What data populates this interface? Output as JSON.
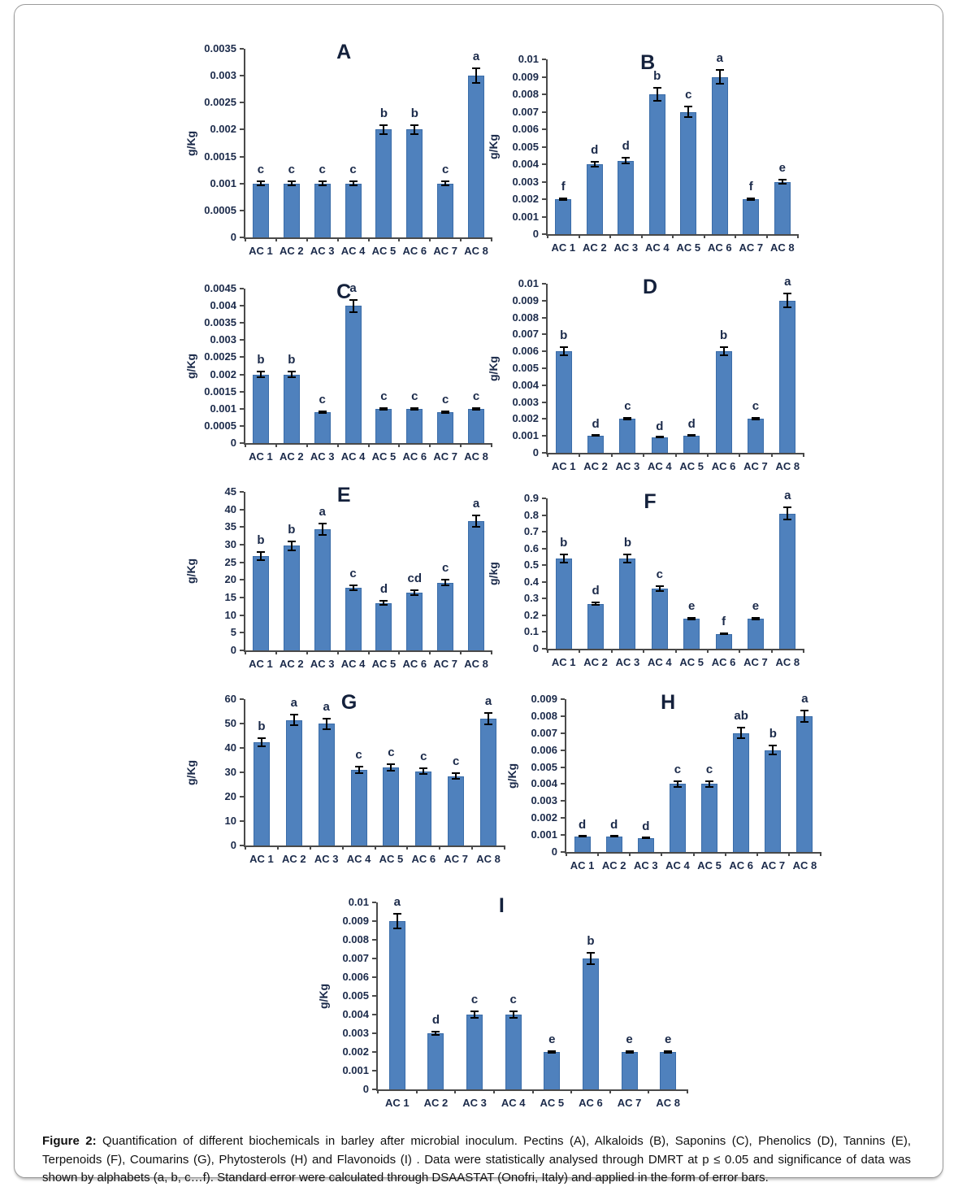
{
  "figure": {
    "caption_label": "Figure 2:",
    "caption_text": " Quantification of different biochemicals in barley after microbial inoculum. Pectins (A), Alkaloids (B), Saponins (C), Phenolics (D), Tannins (E), Terpenoids (F), Coumarins (G), Phytosterols (H) and Flavonoids (I) . Data were statistically analysed through DMRT at p ≤ 0.05 and significance of data was shown by alphabets (a, b, c…f). Standard error were calculated through DSAASTAT (Onofri, Italy) and applied in the form of error bars."
  },
  "colors": {
    "bar": "#4F81BD",
    "bar_border": "#3A6CA8",
    "axis": "#4a4a4a",
    "label_text": "#1b2a4a",
    "error_bar": "#000000"
  },
  "chart_data": [
    {
      "type": "bar",
      "panel": "A",
      "substance": "Pectins",
      "ylabel": "g/Kg",
      "ylim": [
        0,
        0.0035
      ],
      "yticks": [
        "0",
        "0.0005",
        "0.001",
        "0.0015",
        "0.002",
        "0.0025",
        "0.003",
        "0.0035"
      ],
      "categories": [
        "AC 1",
        "AC 2",
        "AC 3",
        "AC 4",
        "AC 5",
        "AC 6",
        "AC 7",
        "AC 8"
      ],
      "values": [
        0.001,
        0.001,
        0.001,
        0.001,
        0.002,
        0.002,
        0.001,
        0.003
      ],
      "errors": [
        5e-05,
        5e-05,
        5e-05,
        5e-05,
        0.0001,
        0.0001,
        5e-05,
        0.00015
      ],
      "sig_letters": [
        "c",
        "c",
        "c",
        "c",
        "b",
        "b",
        "c",
        "a"
      ]
    },
    {
      "type": "bar",
      "panel": "B",
      "substance": "Alkaloids",
      "ylabel": "g/Kg",
      "ylim": [
        0,
        0.01
      ],
      "yticks": [
        "0",
        "0.001",
        "0.002",
        "0.003",
        "0.004",
        "0.005",
        "0.006",
        "0.007",
        "0.008",
        "0.009",
        "0.01"
      ],
      "categories": [
        "AC 1",
        "AC 2",
        "AC 3",
        "AC 4",
        "AC 5",
        "AC 6",
        "AC 7",
        "AC 8"
      ],
      "values": [
        0.002,
        0.004,
        0.0042,
        0.008,
        0.007,
        0.009,
        0.002,
        0.003
      ],
      "errors": [
        0.0001,
        0.0002,
        0.0002,
        0.0004,
        0.00035,
        0.00045,
        0.0001,
        0.00015
      ],
      "sig_letters": [
        "f",
        "d",
        "d",
        "b",
        "c",
        "a",
        "f",
        "e"
      ]
    },
    {
      "type": "bar",
      "panel": "C",
      "substance": "Saponins",
      "ylabel": "g/Kg",
      "ylim": [
        0,
        0.0045
      ],
      "yticks": [
        "0",
        "0.0005",
        "0.001",
        "0.0015",
        "0.002",
        "0.0025",
        "0.003",
        "0.0035",
        "0.004",
        "0.0045"
      ],
      "categories": [
        "AC 1",
        "AC 2",
        "AC 3",
        "AC 4",
        "AC 5",
        "AC 6",
        "AC 7",
        "AC 8"
      ],
      "values": [
        0.002,
        0.002,
        0.0009,
        0.004,
        0.001,
        0.001,
        0.0009,
        0.001
      ],
      "errors": [
        0.0001,
        0.0001,
        5e-05,
        0.0002,
        5e-05,
        5e-05,
        5e-05,
        5e-05
      ],
      "sig_letters": [
        "b",
        "b",
        "c",
        "a",
        "c",
        "c",
        "c",
        "c"
      ]
    },
    {
      "type": "bar",
      "panel": "D",
      "substance": "Phenolics",
      "ylabel": "g/Kg",
      "ylim": [
        0,
        0.01
      ],
      "yticks": [
        "0",
        "0.001",
        "0.002",
        "0.003",
        "0.004",
        "0.005",
        "0.006",
        "0.007",
        "0.008",
        "0.009",
        "0.01"
      ],
      "categories": [
        "AC 1",
        "AC 2",
        "AC 3",
        "AC 4",
        "AC 5",
        "AC 6",
        "AC 7",
        "AC 8"
      ],
      "values": [
        0.006,
        0.001,
        0.002,
        0.0009,
        0.001,
        0.006,
        0.002,
        0.009
      ],
      "errors": [
        0.0003,
        5e-05,
        0.0001,
        3e-05,
        5e-05,
        0.0003,
        0.0001,
        0.00045
      ],
      "sig_letters": [
        "b",
        "d",
        "c",
        "d",
        "d",
        "b",
        "c",
        "a"
      ]
    },
    {
      "type": "bar",
      "panel": "E",
      "substance": "Tannins",
      "ylabel": "g/Kg",
      "ylim": [
        0,
        45
      ],
      "yticks": [
        "0",
        "5",
        "10",
        "15",
        "20",
        "25",
        "30",
        "35",
        "40",
        "45"
      ],
      "categories": [
        "AC 1",
        "AC 2",
        "AC 3",
        "AC 4",
        "AC 5",
        "AC 6",
        "AC 7",
        "AC 8"
      ],
      "values": [
        26.8,
        29.7,
        34.4,
        17.7,
        13.4,
        16.3,
        19.2,
        36.7
      ],
      "errors": [
        1.3,
        1.5,
        1.8,
        0.9,
        0.8,
        0.9,
        1.0,
        1.9
      ],
      "sig_letters": [
        "b",
        "b",
        "a",
        "c",
        "d",
        "cd",
        "c",
        "a"
      ]
    },
    {
      "type": "bar",
      "panel": "F",
      "substance": "Terpenoids",
      "ylabel": "g/kg",
      "ylim": [
        0,
        0.9
      ],
      "yticks": [
        "0",
        "0.1",
        "0.2",
        "0.3",
        "0.4",
        "0.5",
        "0.6",
        "0.7",
        "0.8",
        "0.9"
      ],
      "categories": [
        "AC 1",
        "AC 2",
        "AC 3",
        "AC 4",
        "AC 5",
        "AC 6",
        "AC 7",
        "AC 8"
      ],
      "values": [
        0.54,
        0.27,
        0.54,
        0.36,
        0.18,
        0.09,
        0.18,
        0.81
      ],
      "errors": [
        0.027,
        0.014,
        0.027,
        0.018,
        0.008,
        0.005,
        0.008,
        0.04
      ],
      "sig_letters": [
        "b",
        "d",
        "b",
        "c",
        "e",
        "f",
        "e",
        "a"
      ]
    },
    {
      "type": "bar",
      "panel": "G",
      "substance": "Coumarins",
      "ylabel": "g/Kg",
      "ylim": [
        0,
        60
      ],
      "yticks": [
        "0",
        "10",
        "20",
        "30",
        "40",
        "50",
        "60"
      ],
      "categories": [
        "AC 1",
        "AC 2",
        "AC 3",
        "AC 4",
        "AC 5",
        "AC 6",
        "AC 7",
        "AC 8"
      ],
      "values": [
        42.3,
        51.5,
        49.9,
        31.1,
        32.0,
        30.4,
        28.5,
        52.1
      ],
      "errors": [
        2.1,
        2.5,
        2.5,
        1.6,
        1.7,
        1.5,
        1.5,
        2.6
      ],
      "sig_letters": [
        "b",
        "a",
        "a",
        "c",
        "c",
        "c",
        "c",
        "a"
      ]
    },
    {
      "type": "bar",
      "panel": "H",
      "substance": "Phytosterols",
      "ylabel": "g/Kg",
      "ylim": [
        0,
        0.009
      ],
      "yticks": [
        "0",
        "0.001",
        "0.002",
        "0.003",
        "0.004",
        "0.005",
        "0.006",
        "0.007",
        "0.008",
        "0.009"
      ],
      "categories": [
        "AC 1",
        "AC 2",
        "AC 3",
        "AC 4",
        "AC 5",
        "AC 6",
        "AC 7",
        "AC 8"
      ],
      "values": [
        0.0009,
        0.0009,
        0.0008,
        0.004,
        0.004,
        0.007,
        0.006,
        0.008
      ],
      "errors": [
        5e-05,
        5e-05,
        5e-05,
        0.0002,
        0.0002,
        0.00035,
        0.0003,
        0.0004
      ],
      "sig_letters": [
        "d",
        "d",
        "d",
        "c",
        "c",
        "ab",
        "b",
        "a"
      ]
    },
    {
      "type": "bar",
      "panel": "I",
      "substance": "Flavonoids",
      "ylabel": "g/Kg",
      "ylim": [
        0,
        0.01
      ],
      "yticks": [
        "0",
        "0.001",
        "0.002",
        "0.003",
        "0.004",
        "0.005",
        "0.006",
        "0.007",
        "0.008",
        "0.009",
        "0.01"
      ],
      "categories": [
        "AC 1",
        "AC 2",
        "AC 3",
        "AC 4",
        "AC 5",
        "AC 6",
        "AC 7",
        "AC 8"
      ],
      "values": [
        0.009,
        0.003,
        0.004,
        0.004,
        0.002,
        0.007,
        0.002,
        0.002
      ],
      "errors": [
        0.00045,
        0.00015,
        0.0002,
        0.0002,
        0.0001,
        0.00035,
        0.0001,
        0.0001
      ],
      "sig_letters": [
        "a",
        "d",
        "c",
        "c",
        "e",
        "b",
        "e",
        "e"
      ]
    }
  ]
}
